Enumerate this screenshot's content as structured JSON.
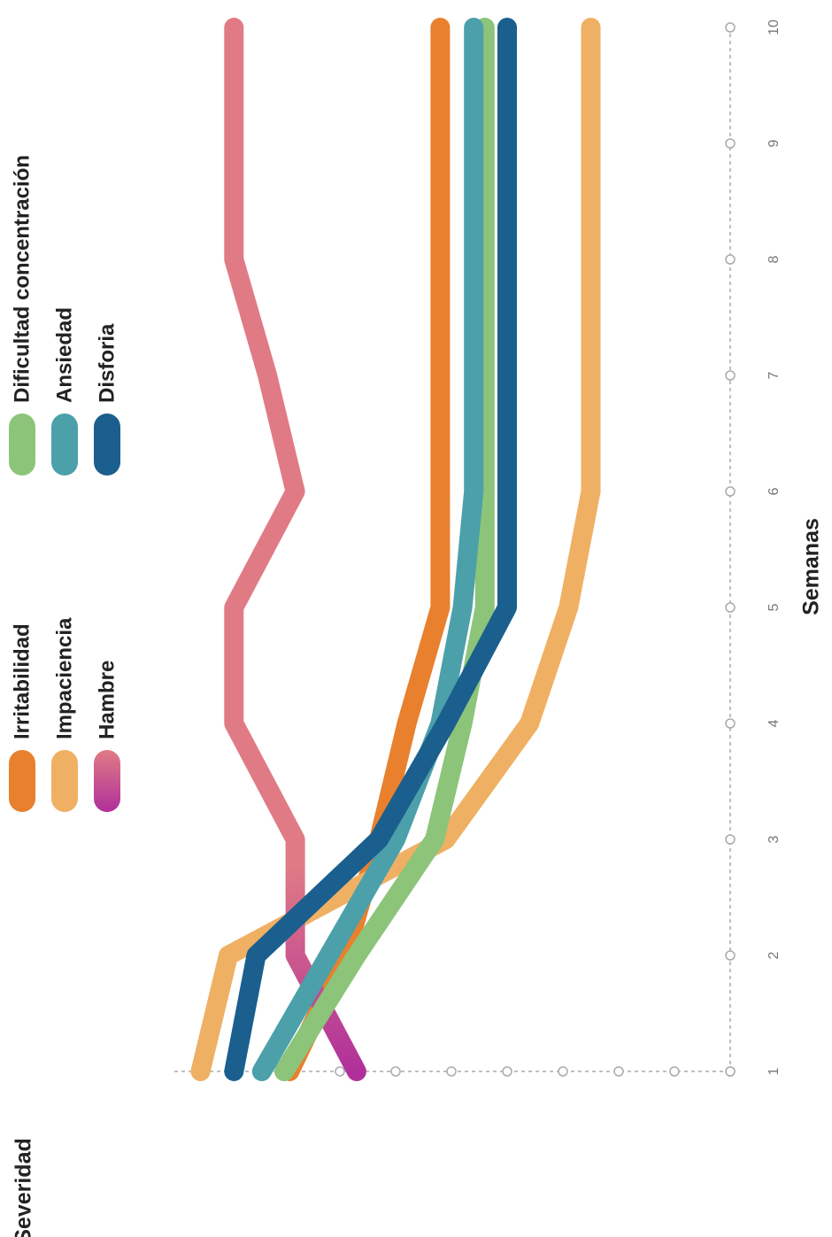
{
  "chart_data": {
    "type": "line",
    "x_label": "Semanas",
    "y_label": "Severidad",
    "categories": [
      "1",
      "2",
      "3",
      "4",
      "5",
      "6",
      "7",
      "8",
      "9",
      "10"
    ],
    "ylim": [
      0,
      10
    ],
    "yticks": [
      0,
      1,
      2,
      3,
      4,
      5,
      6,
      7
    ],
    "series": [
      {
        "name": "Irritabilidad",
        "color": "#e8802e",
        "values": [
          7.9,
          6.9,
          6.3,
          5.8,
          5.2,
          5.2,
          5.2,
          5.2,
          5.2,
          5.2
        ]
      },
      {
        "name": "Impaciencia",
        "color": "#efb064",
        "values": [
          9.5,
          9.0,
          5.1,
          3.6,
          2.9,
          2.5,
          2.5,
          2.5,
          2.5,
          2.5
        ]
      },
      {
        "name": "Hambre",
        "color": "#e07b85",
        "color_start": "#b0309a",
        "values": [
          6.7,
          7.8,
          7.8,
          8.9,
          8.9,
          7.8,
          8.3,
          8.9,
          8.9,
          8.9
        ]
      },
      {
        "name": "Dificultad concentración",
        "color": "#8cc47a",
        "values": [
          8.0,
          6.7,
          5.3,
          4.8,
          4.4,
          4.4,
          4.4,
          4.4,
          4.4,
          4.4
        ]
      },
      {
        "name": "Ansiedad",
        "color": "#4ba0aa",
        "values": [
          8.4,
          7.2,
          6.0,
          5.2,
          4.8,
          4.6,
          4.6,
          4.6,
          4.6,
          4.6
        ]
      },
      {
        "name": "Disforia",
        "color": "#1a5f8e",
        "values": [
          8.9,
          8.5,
          6.3,
          5.1,
          4.0,
          4.0,
          4.0,
          4.0,
          4.0,
          4.0
        ]
      }
    ]
  }
}
